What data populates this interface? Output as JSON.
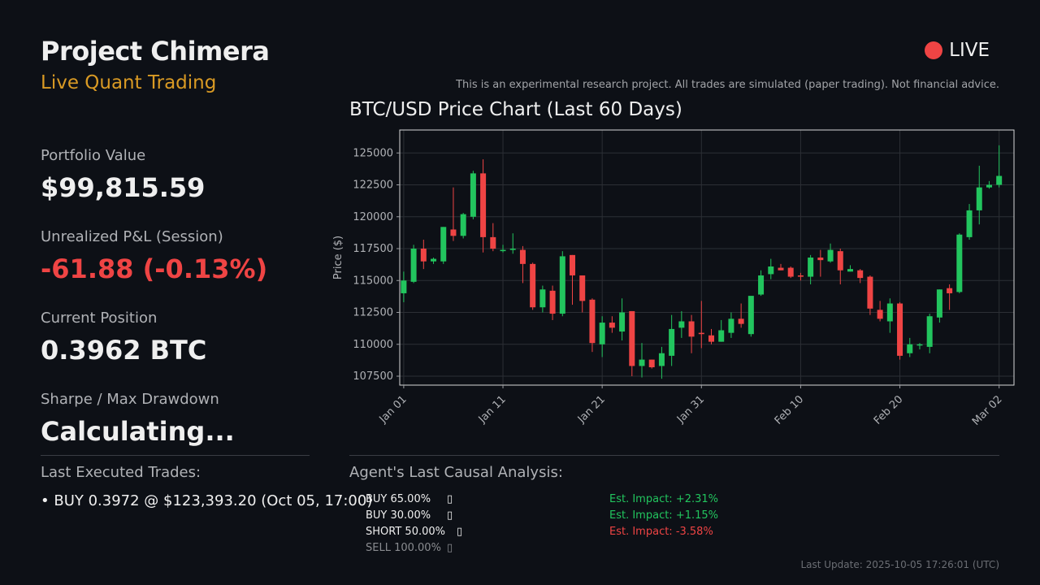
{
  "header": {
    "title": "Project Chimera",
    "subtitle": "Live Quant Trading",
    "live_label": "LIVE",
    "disclaimer": "This is an experimental research project. All trades are simulated (paper trading). Not financial advice."
  },
  "metrics": {
    "portfolio_label": "Portfolio Value",
    "portfolio_value": "$99,815.59",
    "pnl_label": "Unrealized P&L (Session)",
    "pnl_value": "-61.88 (-0.13%)",
    "position_label": "Current Position",
    "position_value": "0.3962 BTC",
    "sharpe_label": "Sharpe / Max Drawdown",
    "sharpe_value": "Calculating..."
  },
  "trades": {
    "label": "Last Executed Trades:",
    "items": [
      "• BUY 0.3972 @ $123,393.20 (Oct 05, 17:00)"
    ]
  },
  "agent": {
    "label": "Agent's Last Causal Analysis:",
    "rows": [
      {
        "action": "BUY 65.00%",
        "icon": "▯",
        "impact": "Est. Impact: +2.31%",
        "sign": "pos"
      },
      {
        "action": "BUY 30.00%",
        "icon": "▯",
        "impact": "Est. Impact: +1.15%",
        "sign": "pos"
      },
      {
        "action": "SHORT 50.00%",
        "icon": "▯",
        "impact": "Est. Impact: -3.58%",
        "sign": "neg"
      },
      {
        "action": "SELL 100.00%",
        "icon": "▯",
        "impact": "",
        "sign": "muted"
      }
    ]
  },
  "footer": {
    "last_update": "Last Update: 2025-10-05 17:26:01 (UTC)"
  },
  "colors": {
    "up": "#22c55e",
    "down": "#ef4444",
    "accent": "#d99a24",
    "background": "#0d1016"
  },
  "chart_data": {
    "type": "candlestick",
    "title": "BTC/USD Price Chart (Last 60 Days)",
    "xlabel": "",
    "ylabel": "Price ($)",
    "ylim": [
      106800,
      126800
    ],
    "yticks": [
      107500,
      110000,
      112500,
      115000,
      117500,
      120000,
      122500,
      125000
    ],
    "xticks": [
      {
        "day": 0,
        "label": "Jan 01"
      },
      {
        "day": 10,
        "label": "Jan 11"
      },
      {
        "day": 20,
        "label": "Jan 21"
      },
      {
        "day": 30,
        "label": "Jan 31"
      },
      {
        "day": 40,
        "label": "Feb 10"
      },
      {
        "day": 50,
        "label": "Feb 20"
      },
      {
        "day": 60,
        "label": "Mar 02"
      }
    ],
    "grid": true,
    "day_start": -0.4,
    "day_end": 61.5,
    "candles": [
      {
        "o": 114000,
        "h": 115700,
        "l": 113300,
        "c": 115000
      },
      {
        "o": 114900,
        "h": 117800,
        "l": 114800,
        "c": 117500
      },
      {
        "o": 117500,
        "h": 118200,
        "l": 115900,
        "c": 116500
      },
      {
        "o": 116500,
        "h": 116800,
        "l": 116300,
        "c": 116700
      },
      {
        "o": 116500,
        "h": 119200,
        "l": 116300,
        "c": 119200
      },
      {
        "o": 119000,
        "h": 122300,
        "l": 118100,
        "c": 118500
      },
      {
        "o": 118500,
        "h": 120300,
        "l": 118300,
        "c": 120200
      },
      {
        "o": 120000,
        "h": 123600,
        "l": 119800,
        "c": 123400
      },
      {
        "o": 123400,
        "h": 124500,
        "l": 117200,
        "c": 118400
      },
      {
        "o": 118400,
        "h": 119500,
        "l": 117300,
        "c": 117500
      },
      {
        "o": 117400,
        "h": 117800,
        "l": 117200,
        "c": 117400
      },
      {
        "o": 117400,
        "h": 118700,
        "l": 117100,
        "c": 117500
      },
      {
        "o": 117400,
        "h": 117700,
        "l": 114800,
        "c": 116300
      },
      {
        "o": 116300,
        "h": 116400,
        "l": 112700,
        "c": 112900
      },
      {
        "o": 112900,
        "h": 114600,
        "l": 112500,
        "c": 114300
      },
      {
        "o": 114200,
        "h": 114600,
        "l": 111900,
        "c": 112400
      },
      {
        "o": 112400,
        "h": 117300,
        "l": 112200,
        "c": 116900
      },
      {
        "o": 117000,
        "h": 117000,
        "l": 113100,
        "c": 115400
      },
      {
        "o": 115400,
        "h": 115400,
        "l": 112500,
        "c": 113400
      },
      {
        "o": 113500,
        "h": 113600,
        "l": 109400,
        "c": 110100
      },
      {
        "o": 110000,
        "h": 112200,
        "l": 109000,
        "c": 111700
      },
      {
        "o": 111700,
        "h": 112200,
        "l": 110900,
        "c": 111300
      },
      {
        "o": 111000,
        "h": 113600,
        "l": 110300,
        "c": 112500
      },
      {
        "o": 112600,
        "h": 112600,
        "l": 107500,
        "c": 108300
      },
      {
        "o": 108300,
        "h": 110100,
        "l": 107400,
        "c": 108800
      },
      {
        "o": 108800,
        "h": 108800,
        "l": 108100,
        "c": 108200
      },
      {
        "o": 108300,
        "h": 109800,
        "l": 107300,
        "c": 109300
      },
      {
        "o": 109100,
        "h": 112300,
        "l": 108300,
        "c": 111200
      },
      {
        "o": 111300,
        "h": 112600,
        "l": 110500,
        "c": 111800
      },
      {
        "o": 111800,
        "h": 112300,
        "l": 109300,
        "c": 110600
      },
      {
        "o": 110900,
        "h": 113400,
        "l": 109700,
        "c": 110800
      },
      {
        "o": 110700,
        "h": 111200,
        "l": 110000,
        "c": 110200
      },
      {
        "o": 110200,
        "h": 111900,
        "l": 110200,
        "c": 111100
      },
      {
        "o": 110900,
        "h": 112500,
        "l": 110500,
        "c": 112000
      },
      {
        "o": 112000,
        "h": 113200,
        "l": 111300,
        "c": 111600
      },
      {
        "o": 110800,
        "h": 113600,
        "l": 110600,
        "c": 113800
      },
      {
        "o": 113900,
        "h": 115800,
        "l": 113800,
        "c": 115400
      },
      {
        "o": 115500,
        "h": 116700,
        "l": 115100,
        "c": 116100
      },
      {
        "o": 116000,
        "h": 116300,
        "l": 115800,
        "c": 115800
      },
      {
        "o": 116000,
        "h": 116100,
        "l": 115200,
        "c": 115300
      },
      {
        "o": 115400,
        "h": 115600,
        "l": 115000,
        "c": 115300
      },
      {
        "o": 115300,
        "h": 117000,
        "l": 114700,
        "c": 116800
      },
      {
        "o": 116800,
        "h": 117400,
        "l": 115300,
        "c": 116600
      },
      {
        "o": 116500,
        "h": 117900,
        "l": 116400,
        "c": 117400
      },
      {
        "o": 117300,
        "h": 117500,
        "l": 114700,
        "c": 115800
      },
      {
        "o": 115700,
        "h": 116200,
        "l": 115700,
        "c": 115900
      },
      {
        "o": 115800,
        "h": 115900,
        "l": 114800,
        "c": 115200
      },
      {
        "o": 115300,
        "h": 115400,
        "l": 112300,
        "c": 112800
      },
      {
        "o": 112700,
        "h": 113400,
        "l": 111800,
        "c": 112000
      },
      {
        "o": 111800,
        "h": 113600,
        "l": 110900,
        "c": 113200
      },
      {
        "o": 113200,
        "h": 113300,
        "l": 108800,
        "c": 109100
      },
      {
        "o": 109300,
        "h": 110500,
        "l": 109000,
        "c": 110000
      },
      {
        "o": 110000,
        "h": 110100,
        "l": 109600,
        "c": 110000
      },
      {
        "o": 109800,
        "h": 112400,
        "l": 109300,
        "c": 112200
      },
      {
        "o": 112100,
        "h": 114300,
        "l": 111700,
        "c": 114300
      },
      {
        "o": 114400,
        "h": 114700,
        "l": 112700,
        "c": 114000
      },
      {
        "o": 114100,
        "h": 118700,
        "l": 114000,
        "c": 118600
      },
      {
        "o": 118400,
        "h": 121000,
        "l": 118200,
        "c": 120500
      },
      {
        "o": 120500,
        "h": 124000,
        "l": 119400,
        "c": 122300
      },
      {
        "o": 122300,
        "h": 122800,
        "l": 122200,
        "c": 122500
      },
      {
        "o": 122500,
        "h": 125600,
        "l": 122300,
        "c": 123200
      }
    ]
  }
}
